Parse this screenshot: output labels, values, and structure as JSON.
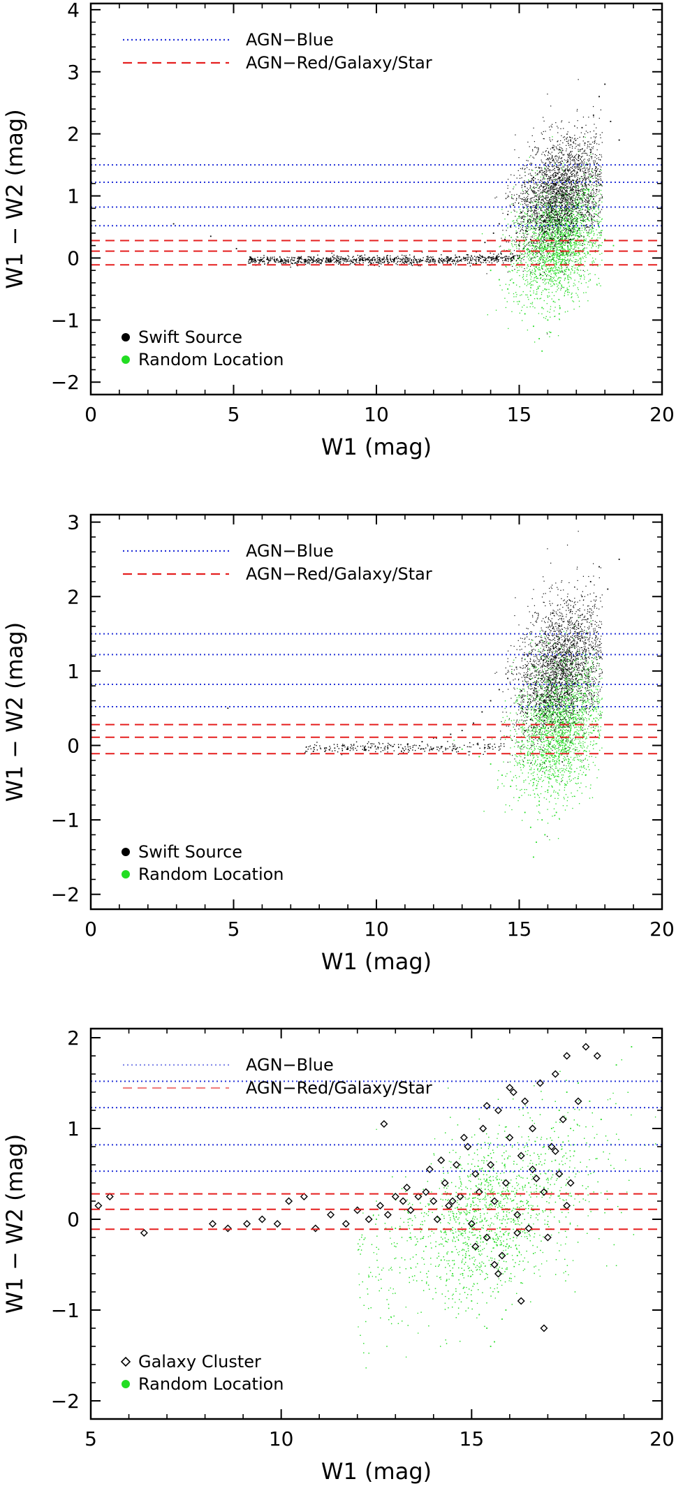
{
  "figure": {
    "description_note": "Three stacked W1 vs W1-W2 color-magnitude scatter panels",
    "colors": {
      "axis": "#000000",
      "agn_blue": "#2230d8",
      "agn_red": "#e51f1f",
      "swift": "#000000",
      "random": "#22dd22",
      "cluster": "#000000"
    }
  },
  "chart_data": [
    {
      "type": "scatter",
      "id": "panel1",
      "xlabel": "W1 (mag)",
      "ylabel": "W1 − W2 (mag)",
      "xlim": [
        0,
        20
      ],
      "ylim": [
        -2.2,
        4.1
      ],
      "xticks": [
        0,
        5,
        10,
        15,
        20
      ],
      "yticks": [
        -2,
        -1,
        0,
        1,
        2,
        3,
        4
      ],
      "hlines_blue": [
        1.5,
        1.22,
        0.82,
        0.52
      ],
      "hlines_red": [
        0.28,
        0.11,
        -0.11
      ],
      "legend_lines": [
        {
          "label": "AGN−Blue",
          "style": "dotted",
          "color": "#2230d8"
        },
        {
          "label": "AGN−Red/Galaxy/Star",
          "style": "dashed",
          "color": "#e51f1f"
        }
      ],
      "legend_points": [
        {
          "label": "Swift Source",
          "marker": "dot",
          "color": "#000000"
        },
        {
          "label": "Random Location",
          "marker": "dot",
          "color": "#22dd22"
        }
      ],
      "series": [
        {
          "name": "Swift Source",
          "color": "#000000",
          "marker": "dot",
          "x": [
            2.9,
            4.2,
            5.1,
            5.6,
            6.2,
            6.8,
            7.3,
            7.9,
            8.4,
            8.9,
            9.3,
            9.7,
            10.2,
            10.6,
            11.0,
            11.4,
            11.8,
            12.2,
            12.5,
            12.9,
            13.2,
            13.5,
            13.8,
            14.1,
            14.3,
            14.6,
            14.8,
            15.0,
            15.2,
            15.3,
            15.5,
            15.6,
            15.7,
            15.8,
            15.9,
            16.0,
            16.1,
            16.2,
            16.3,
            16.4,
            16.5,
            16.6,
            16.7,
            16.8,
            16.9,
            17.0,
            17.1,
            17.2,
            17.3,
            17.4,
            17.5,
            17.6,
            17.7,
            17.8,
            18.0,
            18.2,
            18.5,
            15.4,
            15.8,
            16.2,
            16.6,
            17.0,
            17.4,
            15.1,
            15.5,
            15.9,
            16.3,
            16.7,
            17.1,
            17.5,
            14.9,
            15.3,
            15.7,
            16.1,
            16.5,
            16.9,
            17.3,
            17.7,
            16.0,
            16.4,
            16.8,
            17.2,
            17.6,
            14.5,
            14.7,
            15.0,
            15.6,
            16.2,
            16.8,
            17.4
          ],
          "y": [
            0.55,
            0.35,
            0.15,
            0.0,
            -0.02,
            -0.03,
            -0.02,
            -0.03,
            -0.02,
            -0.02,
            -0.03,
            -0.03,
            -0.02,
            -0.03,
            -0.02,
            -0.03,
            -0.02,
            -0.01,
            0.0,
            0.02,
            0.05,
            0.1,
            0.25,
            0.4,
            0.55,
            0.7,
            0.85,
            1.0,
            1.15,
            0.6,
            1.3,
            0.8,
            1.45,
            0.5,
            1.1,
            1.6,
            0.9,
            1.2,
            0.7,
            1.75,
            1.0,
            1.4,
            0.6,
            1.9,
            1.1,
            0.8,
            1.5,
            2.1,
            1.2,
            0.9,
            1.7,
            2.3,
            1.4,
            2.6,
            2.8,
            2.2,
            1.9,
            0.3,
            0.45,
            0.65,
            0.35,
            0.55,
            0.75,
            0.95,
            1.25,
            1.35,
            1.05,
            1.55,
            1.65,
            1.0,
            0.4,
            0.75,
            0.95,
            1.3,
            0.85,
            1.25,
            1.85,
            1.1,
            0.2,
            0.6,
            0.45,
            0.7,
            0.95,
            0.3,
            0.5,
            0.2,
            -0.1,
            0.15,
            0.3,
            0.5
          ]
        },
        {
          "name": "Random Location",
          "color": "#22dd22",
          "marker": "dot",
          "x": [
            13.5,
            14.0,
            14.3,
            14.6,
            14.8,
            15.0,
            15.2,
            15.4,
            15.5,
            15.6,
            15.7,
            15.8,
            15.9,
            16.0,
            16.1,
            16.2,
            16.3,
            16.4,
            16.5,
            16.6,
            16.7,
            16.8,
            16.9,
            17.0,
            17.1,
            17.2,
            17.3,
            17.4,
            17.5,
            17.6,
            17.7,
            17.8,
            18.0,
            18.3,
            15.3,
            15.6,
            15.9,
            16.2,
            16.5,
            16.8,
            17.1,
            17.4,
            15.0,
            15.4,
            15.8,
            16.1,
            16.4,
            16.7,
            17.0,
            17.3,
            15.5,
            16.0,
            16.6,
            17.2
          ],
          "y": [
            -0.1,
            -0.2,
            -0.35,
            -0.5,
            -0.4,
            -0.7,
            -0.9,
            -0.6,
            -1.1,
            -0.3,
            -1.3,
            -0.8,
            -0.5,
            -1.0,
            -0.2,
            -0.7,
            0.1,
            -0.4,
            0.3,
            -0.1,
            0.5,
            0.2,
            0.7,
            0.4,
            0.9,
            0.6,
            1.1,
            0.8,
            1.3,
            1.0,
            0.7,
            0.5,
            0.3,
            0.2,
            0.15,
            -0.15,
            0.35,
            0.05,
            0.55,
            0.25,
            0.45,
            0.65,
            0.0,
            -0.25,
            -1.5,
            -1.2,
            -0.9,
            -0.55,
            0.85,
            1.05,
            0.2,
            0.4,
            0.6,
            0.95
          ]
        }
      ]
    },
    {
      "type": "scatter",
      "id": "panel2",
      "xlabel": "W1 (mag)",
      "ylabel": "W1 − W2 (mag)",
      "xlim": [
        0,
        20
      ],
      "ylim": [
        -2.2,
        3.1
      ],
      "xticks": [
        0,
        5,
        10,
        15,
        20
      ],
      "yticks": [
        -2,
        -1,
        0,
        1,
        2,
        3
      ],
      "hlines_blue": [
        1.5,
        1.22,
        0.82,
        0.52
      ],
      "hlines_red": [
        0.28,
        0.11,
        -0.11
      ],
      "legend_lines": [
        {
          "label": "AGN−Blue",
          "style": "dotted",
          "color": "#2230d8"
        },
        {
          "label": "AGN−Red/Galaxy/Star",
          "style": "dashed",
          "color": "#e51f1f"
        }
      ],
      "legend_points": [
        {
          "label": "Swift Source",
          "marker": "dot",
          "color": "#000000"
        },
        {
          "label": "Random Location",
          "marker": "dot",
          "color": "#22dd22"
        }
      ],
      "series": [
        {
          "name": "Swift Source",
          "color": "#000000",
          "marker": "dot",
          "x": [
            4.8,
            7.5,
            8.2,
            9.0,
            9.8,
            10.5,
            11.1,
            11.6,
            12.1,
            12.6,
            13.0,
            13.4,
            13.7,
            14.0,
            14.3,
            14.6,
            14.9,
            15.1,
            15.3,
            15.5,
            15.6,
            15.8,
            15.9,
            16.0,
            16.1,
            16.2,
            16.3,
            16.4,
            16.5,
            16.6,
            16.7,
            16.8,
            16.9,
            17.0,
            17.1,
            17.2,
            17.3,
            17.4,
            17.5,
            17.6,
            17.8,
            18.1,
            18.5,
            15.4,
            15.7,
            16.0,
            16.3,
            16.6,
            16.9,
            17.2,
            15.2,
            15.6,
            16.0,
            16.4,
            16.8,
            17.2
          ],
          "y": [
            0.5,
            -0.1,
            -0.08,
            -0.05,
            -0.03,
            0.0,
            0.02,
            0.05,
            0.1,
            0.15,
            0.2,
            0.3,
            0.45,
            0.6,
            0.75,
            0.9,
            1.05,
            0.5,
            1.2,
            0.7,
            1.35,
            0.9,
            1.5,
            1.1,
            0.6,
            1.3,
            0.8,
            1.6,
            1.0,
            1.4,
            0.7,
            1.8,
            1.2,
            0.9,
            1.5,
            2.0,
            1.1,
            1.7,
            2.2,
            1.3,
            2.4,
            2.1,
            2.5,
            0.35,
            0.55,
            0.75,
            0.95,
            1.15,
            1.35,
            1.0,
            0.2,
            0.4,
            0.65,
            0.85,
            1.25,
            1.45
          ]
        },
        {
          "name": "Random Location",
          "color": "#22dd22",
          "marker": "dot",
          "x": [
            13.0,
            13.6,
            14.0,
            14.4,
            14.7,
            15.0,
            15.2,
            15.4,
            15.5,
            15.6,
            15.7,
            15.8,
            15.9,
            16.0,
            16.1,
            16.2,
            16.3,
            16.4,
            16.5,
            16.6,
            16.7,
            16.8,
            16.9,
            17.0,
            17.1,
            17.2,
            17.3,
            17.4,
            17.5,
            17.6,
            17.8,
            15.3,
            15.7,
            16.1,
            16.5,
            16.9,
            17.3,
            15.1,
            15.5,
            15.9,
            16.3
          ],
          "y": [
            -0.05,
            -0.15,
            -0.25,
            -0.4,
            -0.55,
            -0.7,
            -0.9,
            -1.1,
            -0.5,
            -1.3,
            -0.8,
            -1.0,
            -0.3,
            -0.6,
            -0.1,
            -0.4,
            0.1,
            -0.2,
            0.3,
            0.0,
            0.5,
            0.2,
            0.65,
            0.35,
            0.8,
            0.5,
            0.95,
            0.6,
            0.4,
            0.2,
            0.1,
            -0.2,
            -0.75,
            -0.45,
            0.15,
            0.45,
            0.7,
            0.05,
            -1.5,
            -1.2,
            -0.9
          ]
        }
      ]
    },
    {
      "type": "scatter",
      "id": "panel3",
      "xlabel": "W1 (mag)",
      "ylabel": "W1 − W2 (mag)",
      "xlim": [
        5,
        20
      ],
      "ylim": [
        -2.2,
        2.1
      ],
      "xticks": [
        5,
        10,
        15,
        20
      ],
      "yticks": [
        -2,
        -1,
        0,
        1,
        2
      ],
      "hlines_blue": [
        1.52,
        1.23,
        0.82,
        0.53
      ],
      "hlines_red": [
        0.28,
        0.11,
        -0.11
      ],
      "legend_lines": [
        {
          "label": "AGN−Blue",
          "style": "dotted",
          "color": "#2230d8"
        },
        {
          "label": "AGN−Red/Galaxy/Star",
          "style": "dashed",
          "color": "#e51f1f"
        }
      ],
      "legend_points": [
        {
          "label": "Galaxy Cluster",
          "marker": "diamond",
          "color": "#000000"
        },
        {
          "label": "Random Location",
          "marker": "dot",
          "color": "#22dd22"
        }
      ],
      "series": [
        {
          "name": "Galaxy Cluster",
          "color": "#000000",
          "marker": "diamond",
          "x": [
            5.2,
            5.5,
            6.4,
            8.2,
            8.6,
            9.1,
            9.5,
            9.9,
            10.2,
            10.6,
            10.9,
            11.3,
            11.7,
            12.0,
            12.3,
            12.6,
            12.8,
            13.0,
            13.2,
            13.4,
            13.6,
            13.8,
            14.0,
            14.1,
            14.3,
            14.4,
            14.6,
            14.7,
            14.9,
            15.0,
            15.1,
            15.2,
            15.3,
            15.4,
            15.5,
            15.6,
            15.7,
            15.8,
            15.9,
            16.0,
            16.1,
            16.2,
            16.3,
            16.4,
            16.5,
            16.6,
            16.7,
            16.8,
            16.9,
            17.0,
            17.1,
            17.2,
            17.3,
            17.4,
            17.5,
            17.6,
            17.8,
            18.0,
            18.3,
            12.7,
            13.3,
            13.9,
            14.5,
            15.1,
            15.7,
            16.3,
            16.9,
            17.5,
            14.2,
            14.8,
            15.4,
            16.0,
            16.6,
            17.2,
            15.6,
            16.2
          ],
          "y": [
            0.15,
            0.25,
            -0.15,
            -0.05,
            -0.1,
            -0.05,
            0.0,
            -0.05,
            0.2,
            0.25,
            -0.1,
            0.05,
            -0.05,
            0.1,
            0.0,
            0.15,
            0.05,
            0.25,
            0.2,
            0.1,
            0.25,
            0.3,
            0.2,
            0.0,
            0.4,
            0.15,
            0.6,
            0.25,
            0.8,
            -0.05,
            0.5,
            0.3,
            1.0,
            -0.2,
            0.6,
            0.2,
            1.2,
            -0.4,
            0.4,
            0.9,
            1.4,
            0.05,
            0.7,
            1.3,
            -0.1,
            1.0,
            0.45,
            1.5,
            0.3,
            -0.2,
            0.8,
            1.6,
            0.5,
            1.1,
            1.8,
            0.4,
            1.3,
            1.9,
            1.8,
            1.05,
            0.35,
            0.55,
            0.2,
            -0.3,
            -0.6,
            -0.9,
            -1.2,
            0.15,
            0.65,
            0.9,
            1.25,
            1.45,
            0.55,
            0.75,
            -0.5,
            -0.15
          ]
        },
        {
          "name": "Random Location",
          "color": "#22dd22",
          "marker": "dot",
          "x": [
            12.5,
            13.0,
            13.4,
            13.8,
            14.2,
            14.5,
            14.8,
            15.0,
            15.2,
            15.4,
            15.5,
            15.6,
            15.7,
            15.8,
            15.9,
            16.0,
            16.1,
            16.2,
            16.3,
            16.4,
            16.5,
            16.6,
            16.7,
            16.8,
            16.9,
            17.0,
            17.1,
            17.2,
            17.3,
            17.4,
            17.5,
            17.6,
            17.8,
            18.1,
            18.4,
            18.8,
            19.2,
            15.3,
            15.7,
            16.1,
            16.5,
            16.9,
            17.3,
            17.7,
            15.1,
            15.5,
            15.9,
            16.3
          ],
          "y": [
            0.0,
            -0.1,
            -0.2,
            -0.3,
            -0.45,
            -0.6,
            -0.75,
            -0.9,
            -1.05,
            -1.2,
            -0.5,
            -1.35,
            -0.8,
            -1.1,
            -0.3,
            -0.65,
            0.0,
            -0.4,
            0.2,
            -0.15,
            0.4,
            0.1,
            0.6,
            0.3,
            0.8,
            0.45,
            1.0,
            0.65,
            1.2,
            0.85,
            1.4,
            1.0,
            1.5,
            1.3,
            1.1,
            1.7,
            1.9,
            -0.25,
            -0.55,
            -0.2,
            0.15,
            0.35,
            0.55,
            0.75,
            0.1,
            -1.4,
            -1.0,
            -0.7
          ]
        }
      ]
    }
  ]
}
